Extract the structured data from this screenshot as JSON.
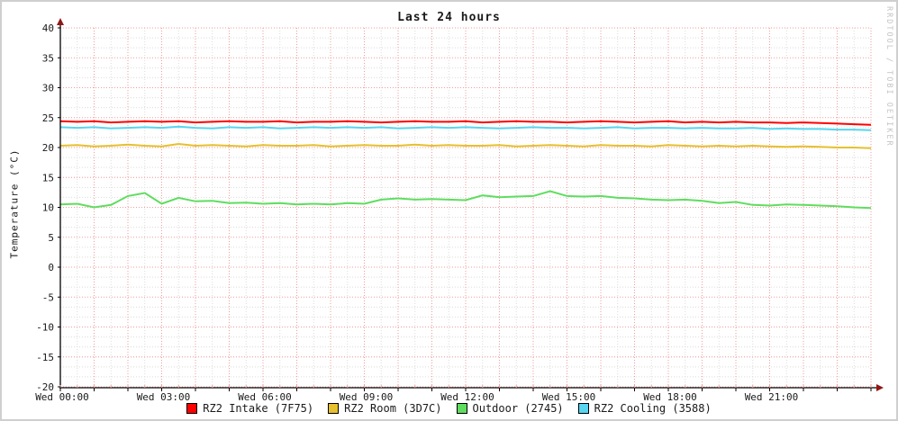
{
  "title": "Last 24 hours",
  "ylabel": "Temperature (°C)",
  "watermark": "RRDTOOL / TOBI OETIKER",
  "colors": {
    "axis": "#000000",
    "arrow": "#911717",
    "grid_major": "#f29d9d",
    "grid_minor": "#dcdcdc",
    "text": "#1a1a1a",
    "watermark": "#c4c4c4",
    "border": "#cfcfcf",
    "background": "#ffffff"
  },
  "chart_data": {
    "type": "line",
    "title": "Last 24 hours",
    "xlabel": "",
    "ylabel": "Temperature (°C)",
    "ylim": [
      -20,
      40
    ],
    "xlim_hours": [
      0,
      24
    ],
    "y_tick_step": 5,
    "y_ticks": [
      40,
      35,
      30,
      25,
      20,
      15,
      10,
      5,
      0,
      -5,
      -10,
      -15,
      -20
    ],
    "x_ticks": [
      {
        "t": 0,
        "label": "Wed 00:00"
      },
      {
        "t": 3,
        "label": "Wed 03:00"
      },
      {
        "t": 6,
        "label": "Wed 06:00"
      },
      {
        "t": 9,
        "label": "Wed 09:00"
      },
      {
        "t": 12,
        "label": "Wed 12:00"
      },
      {
        "t": 15,
        "label": "Wed 15:00"
      },
      {
        "t": 18,
        "label": "Wed 18:00"
      },
      {
        "t": 21,
        "label": "Wed 21:00"
      }
    ],
    "grid": {
      "x_minor_step_h": 0.5,
      "x_major_step_h": 1,
      "y_major_step": 5,
      "y_minors_per_major": 2
    },
    "legend_position": "bottom",
    "x_step_h": 0.5,
    "series": [
      {
        "name": "RZ2 Intake (7F75)",
        "color": "#ff0000",
        "values": [
          24.4,
          24.3,
          24.4,
          24.2,
          24.3,
          24.4,
          24.3,
          24.4,
          24.2,
          24.3,
          24.4,
          24.3,
          24.3,
          24.4,
          24.2,
          24.3,
          24.3,
          24.4,
          24.3,
          24.2,
          24.3,
          24.4,
          24.3,
          24.3,
          24.4,
          24.2,
          24.3,
          24.4,
          24.3,
          24.3,
          24.2,
          24.3,
          24.4,
          24.3,
          24.2,
          24.3,
          24.4,
          24.2,
          24.3,
          24.2,
          24.3,
          24.2,
          24.2,
          24.1,
          24.2,
          24.1,
          24.0,
          23.9,
          23.8
        ]
      },
      {
        "name": "RZ2 Room (3D7C)",
        "color": "#e6c02e",
        "values": [
          20.3,
          20.4,
          20.2,
          20.3,
          20.5,
          20.3,
          20.2,
          20.6,
          20.3,
          20.4,
          20.3,
          20.2,
          20.4,
          20.3,
          20.3,
          20.4,
          20.2,
          20.3,
          20.4,
          20.3,
          20.3,
          20.5,
          20.3,
          20.4,
          20.3,
          20.3,
          20.4,
          20.2,
          20.3,
          20.4,
          20.3,
          20.2,
          20.4,
          20.3,
          20.3,
          20.2,
          20.4,
          20.3,
          20.2,
          20.3,
          20.2,
          20.3,
          20.2,
          20.1,
          20.2,
          20.1,
          20.0,
          20.0,
          19.9
        ]
      },
      {
        "name": "Outdoor (2745)",
        "color": "#5fdd5f",
        "values": [
          10.5,
          10.6,
          10.0,
          10.4,
          11.9,
          12.4,
          10.6,
          11.6,
          11.0,
          11.1,
          10.7,
          10.8,
          10.6,
          10.7,
          10.5,
          10.6,
          10.5,
          10.7,
          10.6,
          11.3,
          11.5,
          11.3,
          11.4,
          11.3,
          11.2,
          12.0,
          11.7,
          11.8,
          11.9,
          12.7,
          11.9,
          11.8,
          11.9,
          11.6,
          11.5,
          11.3,
          11.2,
          11.3,
          11.1,
          10.7,
          10.9,
          10.4,
          10.3,
          10.5,
          10.4,
          10.3,
          10.2,
          10.0,
          9.9
        ]
      },
      {
        "name": "RZ2 Cooling (3588)",
        "color": "#58d5f0",
        "values": [
          23.4,
          23.3,
          23.4,
          23.2,
          23.3,
          23.4,
          23.3,
          23.5,
          23.3,
          23.2,
          23.4,
          23.3,
          23.4,
          23.2,
          23.3,
          23.4,
          23.3,
          23.4,
          23.3,
          23.4,
          23.2,
          23.3,
          23.4,
          23.3,
          23.4,
          23.3,
          23.2,
          23.3,
          23.4,
          23.3,
          23.3,
          23.2,
          23.3,
          23.4,
          23.2,
          23.3,
          23.3,
          23.2,
          23.3,
          23.2,
          23.2,
          23.3,
          23.1,
          23.2,
          23.1,
          23.1,
          23.0,
          23.0,
          22.9
        ]
      }
    ]
  }
}
